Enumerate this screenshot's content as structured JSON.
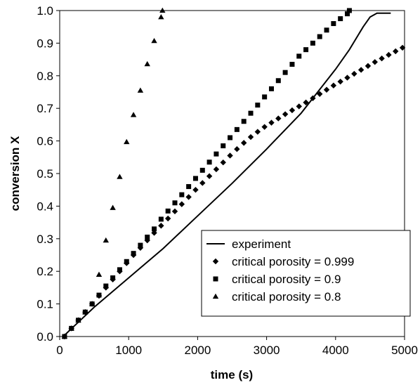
{
  "chart_data": {
    "type": "scatter",
    "xlabel": "time (s)",
    "ylabel": "conversion X",
    "xlim": [
      0,
      5000
    ],
    "ylim": [
      0,
      1.0
    ],
    "xticks": [
      "0",
      "1000",
      "2000",
      "3000",
      "4000",
      "5000"
    ],
    "yticks": [
      "0.0",
      "0.1",
      "0.2",
      "0.3",
      "0.4",
      "0.5",
      "0.6",
      "0.7",
      "0.8",
      "0.9",
      "1.0"
    ],
    "xtick_values": [
      0,
      1000,
      2000,
      3000,
      4000,
      5000
    ],
    "ytick_values": [
      0,
      0.1,
      0.2,
      0.3,
      0.4,
      0.5,
      0.6,
      0.7,
      0.8,
      0.9,
      1.0
    ],
    "grid": false,
    "legend_position": "bottom-right",
    "series": [
      {
        "name": "experiment",
        "style": "line",
        "color": "#000000",
        "x": [
          50,
          200,
          500,
          1000,
          1500,
          2000,
          2500,
          3000,
          3500,
          4000,
          4200,
          4400,
          4500,
          4600,
          4800
        ],
        "y": [
          0.0,
          0.03,
          0.09,
          0.18,
          0.27,
          0.37,
          0.47,
          0.575,
          0.685,
          0.82,
          0.88,
          0.95,
          0.98,
          0.992,
          0.992
        ]
      },
      {
        "name": "critical porosity = 0.999",
        "style": "diamond",
        "color": "#000000",
        "x": [
          70,
          170,
          270,
          370,
          470,
          570,
          670,
          770,
          870,
          970,
          1070,
          1170,
          1270,
          1370,
          1470,
          1570,
          1670,
          1770,
          1870,
          1970,
          2070,
          2170,
          2270,
          2370,
          2470,
          2570,
          2670,
          2770,
          2870,
          2970,
          3070,
          3170,
          3270,
          3370,
          3470,
          3570,
          3670,
          3770,
          3870,
          3970,
          4070,
          4170,
          4270,
          4370,
          4470,
          4570,
          4670,
          4770,
          4870,
          4970
        ],
        "y": [
          0.0,
          0.025,
          0.05,
          0.075,
          0.1,
          0.125,
          0.15,
          0.175,
          0.2,
          0.225,
          0.25,
          0.272,
          0.295,
          0.318,
          0.34,
          0.362,
          0.384,
          0.406,
          0.428,
          0.45,
          0.471,
          0.492,
          0.513,
          0.534,
          0.555,
          0.575,
          0.594,
          0.612,
          0.628,
          0.643,
          0.656,
          0.669,
          0.682,
          0.694,
          0.706,
          0.718,
          0.731,
          0.744,
          0.757,
          0.77,
          0.782,
          0.794,
          0.806,
          0.818,
          0.83,
          0.842,
          0.853,
          0.864,
          0.875,
          0.886
        ]
      },
      {
        "name": "critical porosity = 0.9",
        "style": "square",
        "color": "#000000",
        "x": [
          70,
          170,
          270,
          370,
          470,
          570,
          670,
          770,
          870,
          970,
          1070,
          1170,
          1270,
          1370,
          1470,
          1570,
          1670,
          1770,
          1870,
          1970,
          2070,
          2170,
          2270,
          2370,
          2470,
          2570,
          2670,
          2770,
          2870,
          2970,
          3070,
          3170,
          3270,
          3370,
          3470,
          3570,
          3670,
          3770,
          3870,
          3970,
          4070,
          4170,
          4200
        ],
        "y": [
          0.0,
          0.025,
          0.05,
          0.075,
          0.1,
          0.127,
          0.155,
          0.18,
          0.205,
          0.23,
          0.255,
          0.28,
          0.305,
          0.33,
          0.36,
          0.385,
          0.41,
          0.435,
          0.46,
          0.485,
          0.51,
          0.535,
          0.56,
          0.585,
          0.61,
          0.635,
          0.66,
          0.685,
          0.71,
          0.735,
          0.76,
          0.785,
          0.81,
          0.835,
          0.86,
          0.88,
          0.9,
          0.92,
          0.94,
          0.96,
          0.975,
          0.99,
          1.0
        ]
      },
      {
        "name": "critical porosity = 0.8",
        "style": "triangle",
        "color": "#000000",
        "x": [
          70,
          170,
          270,
          370,
          470,
          570,
          670,
          770,
          870,
          970,
          1070,
          1170,
          1270,
          1370,
          1470,
          1490
        ],
        "y": [
          0.0,
          0.025,
          0.05,
          0.075,
          0.1,
          0.19,
          0.295,
          0.395,
          0.49,
          0.597,
          0.68,
          0.755,
          0.836,
          0.907,
          0.98,
          1.0
        ]
      }
    ]
  }
}
